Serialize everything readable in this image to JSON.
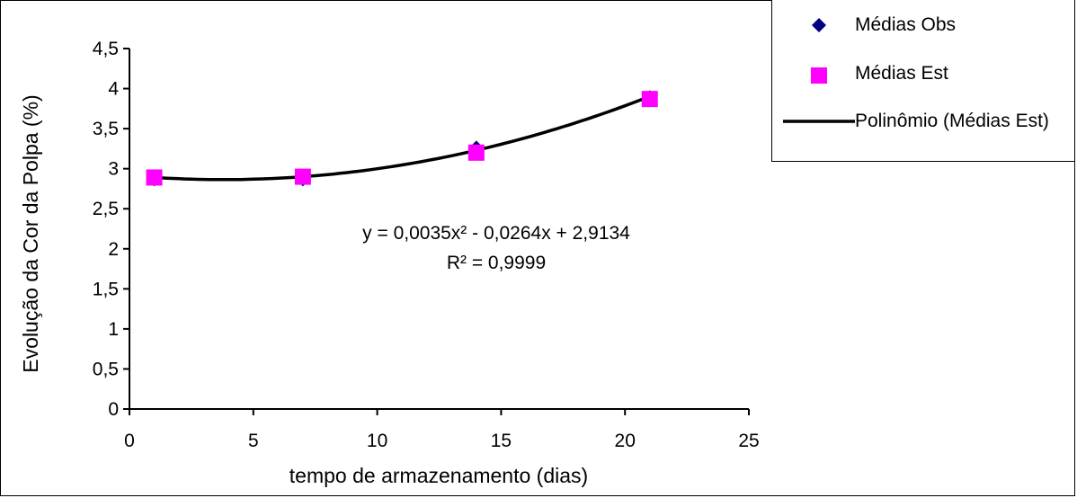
{
  "chart_data": {
    "type": "scatter",
    "xlabel": "tempo de armazenamento (dias)",
    "ylabel": "Evolução da Cor da Polpa (%)",
    "xlim": [
      0,
      25
    ],
    "ylim": [
      0,
      4.5
    ],
    "x_ticks": [
      "0",
      "5",
      "10",
      "15",
      "20",
      "25"
    ],
    "y_ticks": [
      "0",
      "0,5",
      "1",
      "1,5",
      "2",
      "2,5",
      "3",
      "3,5",
      "4",
      "4,5"
    ],
    "grid": false,
    "legend_position": "top-right",
    "series": [
      {
        "name": "Médias Obs",
        "marker": "diamond",
        "color": "#000080",
        "x": [
          1,
          7,
          14,
          21
        ],
        "y": [
          2.88,
          2.88,
          3.25,
          3.88
        ]
      },
      {
        "name": "Médias Est",
        "marker": "square",
        "color": "#ff00ff",
        "x": [
          1,
          7,
          14,
          21
        ],
        "y": [
          2.89,
          2.9,
          3.2,
          3.87
        ]
      }
    ],
    "trendline": {
      "name": "Polinômio (Médias Est)",
      "color": "#000000",
      "coefficients": {
        "a": 0.0035,
        "b": -0.0264,
        "c": 2.9134
      },
      "x_range": [
        1,
        21
      ],
      "equation": "y = 0,0035x² - 0,0264x + 2,9134",
      "r_squared": "R² = 0,9999"
    }
  },
  "legend": {
    "items": [
      {
        "label": "Médias Obs"
      },
      {
        "label": "Médias Est"
      },
      {
        "label": "Polinômio (Médias Est)"
      }
    ]
  }
}
